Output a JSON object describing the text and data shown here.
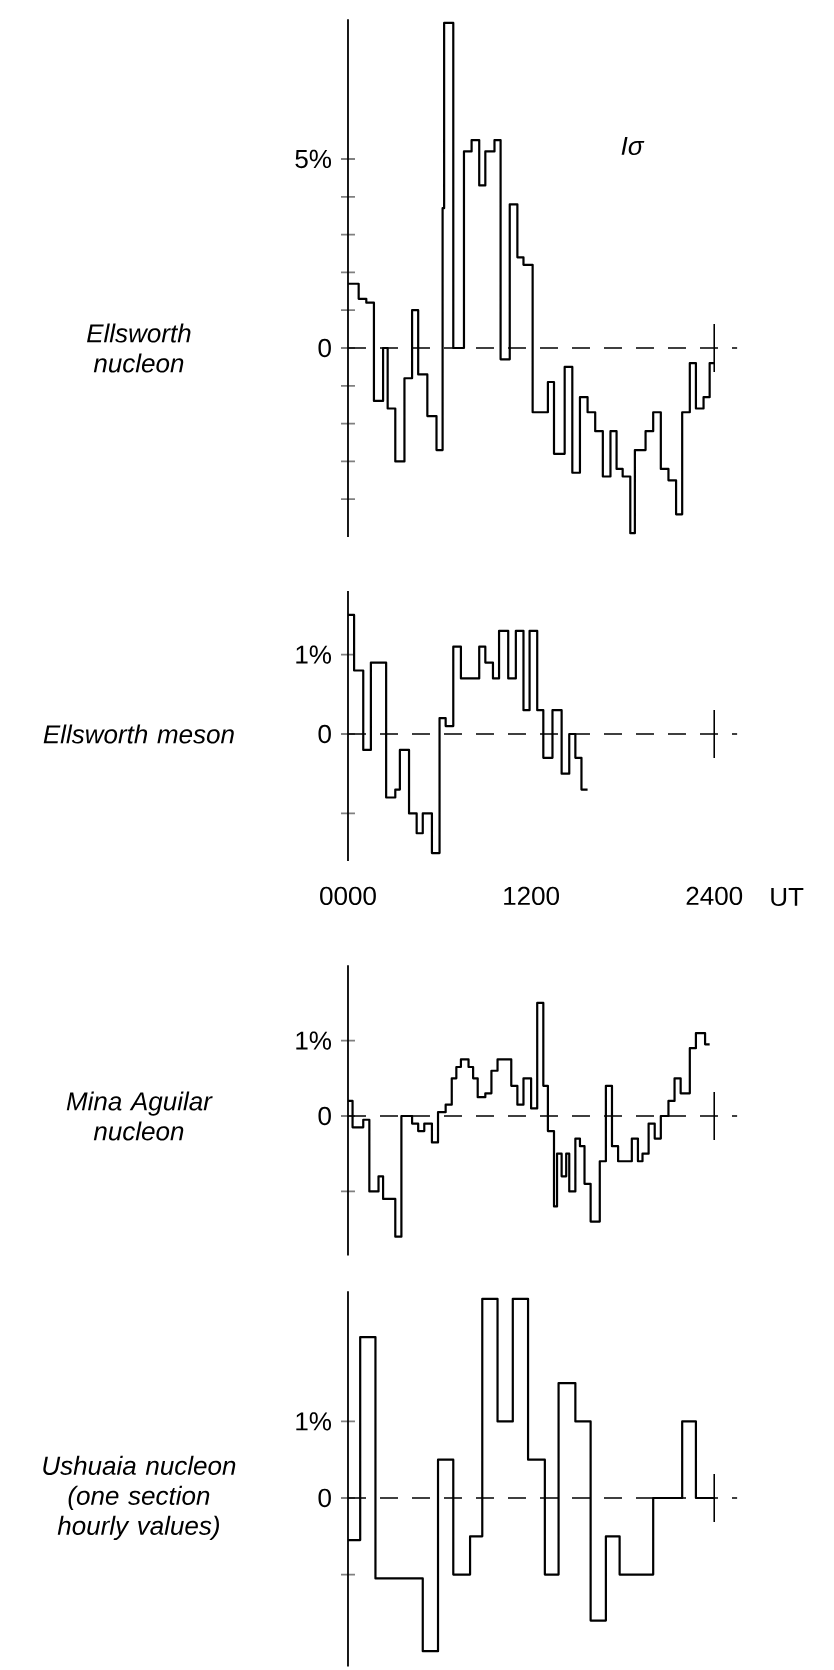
{
  "chart_data": [
    {
      "type": "step",
      "ylabel": "Ellsworth nucleon",
      "annotations": [
        "Iσ"
      ],
      "color": "#000000",
      "xlim": [
        0,
        2550
      ],
      "ylim": [
        -5,
        8.7
      ],
      "tick_labels": "y",
      "xticks": [
        0,
        1200,
        2400
      ],
      "yticks": [
        {
          "value": -4,
          "label": null
        },
        {
          "value": -3,
          "label": null
        },
        {
          "value": -2,
          "label": null
        },
        {
          "value": -1,
          "label": null
        },
        0,
        {
          "value": 1,
          "label": null
        },
        {
          "value": 2,
          "label": null
        },
        {
          "value": 3,
          "label": null
        },
        {
          "value": 4,
          "label": null
        },
        {
          "value": 5,
          "label": "5%"
        }
      ],
      "ref_lines": [
        {
          "axis": "y",
          "value": 0,
          "line_style": "dashed"
        },
        {
          "axis": "x",
          "value": 2400
        }
      ],
      "x": [
        0,
        70,
        120,
        170,
        230,
        260,
        310,
        370,
        420,
        460,
        520,
        580,
        620,
        630,
        690,
        760,
        810,
        860,
        900,
        960,
        1000,
        1060,
        1110,
        1150,
        1210,
        1310,
        1350,
        1420,
        1470,
        1520,
        1570,
        1620,
        1670,
        1720,
        1760,
        1800,
        1850,
        1880,
        1950,
        2000,
        2050,
        2100,
        2150,
        2190,
        2240,
        2280,
        2330,
        2370,
        2400
      ],
      "values": [
        1.7,
        1.3,
        1.2,
        -1.4,
        0.0,
        -1.6,
        -3.0,
        -0.8,
        1.0,
        -0.7,
        -1.8,
        -2.7,
        3.7,
        8.6,
        0.0,
        5.2,
        5.5,
        4.3,
        5.2,
        5.5,
        -0.3,
        3.8,
        2.4,
        2.2,
        -1.7,
        -0.9,
        -2.8,
        -0.5,
        -3.3,
        -1.3,
        -1.7,
        -2.2,
        -3.4,
        -2.2,
        -3.2,
        -3.4,
        -4.9,
        -2.7,
        -2.2,
        -1.7,
        -3.2,
        -3.5,
        -4.4,
        -1.7,
        -0.4,
        -1.6,
        -1.3,
        -0.4,
        -0.4
      ]
    },
    {
      "type": "step",
      "ylabel": "Ellsworth meson",
      "color": "#000000",
      "xlim": [
        0,
        2550
      ],
      "ylim": [
        -1.6,
        1.8
      ],
      "tick_labels": "y",
      "xticks": [
        0,
        1200,
        2400
      ],
      "yticks": [
        {
          "value": -1,
          "label": null
        },
        0,
        {
          "value": 1,
          "label": "1%"
        }
      ],
      "ref_lines": [
        {
          "axis": "y",
          "value": 0,
          "line_style": "dashed"
        },
        {
          "axis": "x",
          "value": 2400
        }
      ],
      "x": [
        0,
        40,
        100,
        150,
        250,
        310,
        340,
        400,
        450,
        490,
        550,
        600,
        640,
        690,
        740,
        860,
        900,
        950,
        990,
        1050,
        1100,
        1150,
        1190,
        1240,
        1280,
        1340,
        1400,
        1450,
        1490,
        1530,
        1570
      ],
      "values": [
        1.5,
        0.8,
        -0.2,
        0.9,
        -0.8,
        -0.7,
        -0.2,
        -1.0,
        -1.25,
        -1.0,
        -1.5,
        0.2,
        0.1,
        1.1,
        0.7,
        1.1,
        0.9,
        0.7,
        1.3,
        0.7,
        1.3,
        0.3,
        1.3,
        0.3,
        -0.3,
        0.3,
        -0.5,
        0.0,
        -0.3,
        -0.7,
        -0.7
      ]
    },
    {
      "type": "step",
      "ylabel": "Mina Aguilar nucleon",
      "xlabel": "UT",
      "color": "#000000",
      "xlim": [
        0,
        2550
      ],
      "ylim": [
        -1.85,
        2.0
      ],
      "xticks": [
        {
          "value": 0,
          "label": "0000"
        },
        1200,
        2400
      ],
      "yticks": [
        {
          "value": -1,
          "label": null
        },
        0,
        {
          "value": 1,
          "label": "1%"
        }
      ],
      "ref_lines": [
        {
          "axis": "y",
          "value": 0,
          "line_style": "dashed"
        },
        {
          "axis": "x",
          "value": 2400
        }
      ],
      "x": [
        0,
        30,
        100,
        140,
        200,
        230,
        310,
        350,
        420,
        460,
        500,
        550,
        590,
        640,
        680,
        710,
        740,
        790,
        820,
        850,
        900,
        940,
        980,
        1070,
        1110,
        1150,
        1200,
        1240,
        1280,
        1310,
        1350,
        1370,
        1400,
        1430,
        1450,
        1490,
        1520,
        1550,
        1590,
        1650,
        1690,
        1730,
        1770,
        1860,
        1900,
        1930,
        1970,
        2010,
        2050,
        2100,
        2140,
        2180,
        2240,
        2280,
        2340,
        2370
      ],
      "values": [
        0.2,
        -0.15,
        -0.05,
        -1.0,
        -0.8,
        -1.1,
        -1.6,
        0.0,
        -0.1,
        -0.2,
        -0.1,
        -0.35,
        0.05,
        0.15,
        0.5,
        0.65,
        0.75,
        0.65,
        0.5,
        0.25,
        0.3,
        0.6,
        0.75,
        0.4,
        0.15,
        0.5,
        0.1,
        1.5,
        0.4,
        -0.2,
        -1.2,
        -0.5,
        -0.8,
        -0.5,
        -1.0,
        -0.3,
        -0.4,
        -0.9,
        -1.4,
        -0.6,
        0.4,
        -0.4,
        -0.6,
        -0.3,
        -0.6,
        -0.5,
        -0.1,
        -0.3,
        0.0,
        0.2,
        0.5,
        0.3,
        0.9,
        1.1,
        0.95,
        0.95
      ]
    },
    {
      "type": "step",
      "ylabel": "Ushuaia nucleon (one section hourly values)",
      "color": "#000000",
      "xlim": [
        0,
        2550
      ],
      "ylim": [
        -2.2,
        2.7
      ],
      "tick_labels": "y",
      "xticks": [
        0,
        1200,
        2400
      ],
      "yticks": [
        {
          "value": -1,
          "label": null
        },
        0,
        {
          "value": 1,
          "label": "1%"
        }
      ],
      "ref_lines": [
        {
          "axis": "y",
          "value": 0,
          "line_style": "dashed"
        },
        {
          "axis": "x",
          "value": 2400
        }
      ],
      "x": [
        0,
        80,
        180,
        490,
        590,
        690,
        800,
        880,
        980,
        1080,
        1180,
        1290,
        1380,
        1490,
        1590,
        1690,
        1780,
        2000,
        2190,
        2280,
        2400
      ],
      "values": [
        -0.55,
        2.1,
        -1.05,
        -2.0,
        0.5,
        -1.0,
        -0.5,
        2.6,
        1.0,
        2.6,
        0.5,
        -1.0,
        1.5,
        1.0,
        -1.6,
        -0.5,
        -1.0,
        0.0,
        1.0,
        0.0,
        0.0
      ]
    }
  ]
}
